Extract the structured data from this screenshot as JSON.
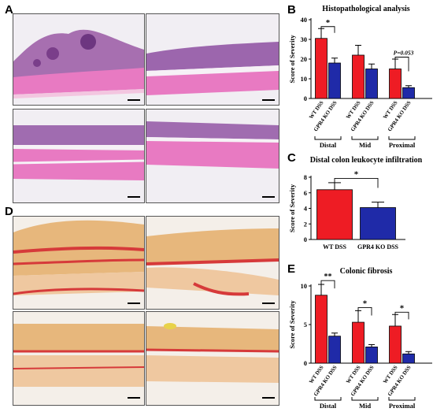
{
  "panels": {
    "A": "A",
    "B": "B",
    "C": "C",
    "D": "D",
    "E": "E"
  },
  "colors": {
    "wt": "#ee1c24",
    "ko": "#1f2aa8",
    "he_stain": "#b45aa8",
    "he_bg": "#e87ac2",
    "sirius_red": "#d63a3a",
    "sirius_bg": "#e7b77c"
  },
  "chart_data": [
    {
      "id": "B",
      "type": "bar",
      "title": "Histopathological analysis",
      "ylabel": "Score of Severity",
      "ylim": [
        0,
        40
      ],
      "yticks": [
        0,
        10,
        20,
        30,
        40
      ],
      "categories": [
        "WT DSS",
        "GPR4 KO DSS",
        "WT DSS",
        "GPR4 KO DSS",
        "WT DSS",
        "GPR4 KO DSS"
      ],
      "values": [
        30.5,
        18,
        22,
        15,
        15,
        5.5
      ],
      "errors": [
        5,
        2.5,
        5,
        2.5,
        5,
        1
      ],
      "groups": [
        "Distal",
        "Mid",
        "Proximal"
      ],
      "annotations": [
        "*",
        "P=0.053"
      ]
    },
    {
      "id": "C",
      "type": "bar",
      "title": "Distal colon leukocyte infiltration",
      "ylabel": "Score of Severity",
      "ylim": [
        0,
        8
      ],
      "yticks": [
        0,
        2,
        4,
        6,
        8
      ],
      "categories": [
        "WT DSS",
        "GPR4 KO DSS"
      ],
      "values": [
        6.4,
        4.1
      ],
      "errors": [
        0.9,
        0.7
      ],
      "annotations": [
        "*"
      ]
    },
    {
      "id": "E",
      "type": "bar",
      "title": "Colonic fibrosis",
      "ylabel": "Score of Severity",
      "ylim": [
        0,
        10
      ],
      "yticks": [
        0,
        5,
        10
      ],
      "categories": [
        "WT DSS",
        "GPR4 KO DSS",
        "WT DSS",
        "GPR4 KO DSS",
        "WT DSS",
        "GPR4 KO DSS"
      ],
      "values": [
        8.8,
        3.5,
        5.3,
        2.1,
        4.8,
        1.2
      ],
      "errors": [
        1.4,
        0.4,
        1.5,
        0.3,
        1.5,
        0.3
      ],
      "groups": [
        "Distal",
        "Mid",
        "Proximal"
      ],
      "annotations": [
        "**",
        "*",
        "*"
      ]
    }
  ]
}
